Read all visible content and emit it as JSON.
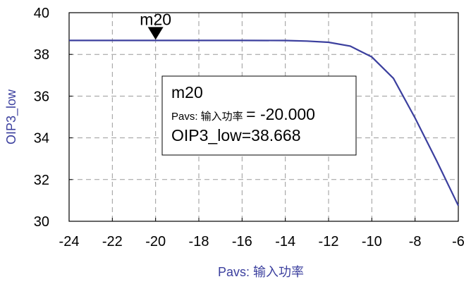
{
  "chart_data": {
    "type": "line",
    "xlabel": "Pavs: 输入功率",
    "ylabel": "OIP3_low",
    "xlim": [
      -24,
      -6
    ],
    "ylim": [
      30,
      40
    ],
    "x_ticks": [
      "-24",
      "-22",
      "-20",
      "-18",
      "-16",
      "-14",
      "-12",
      "-10",
      "-8",
      "-6"
    ],
    "y_ticks": [
      "30",
      "32",
      "34",
      "36",
      "38",
      "40"
    ],
    "grid": "dashed",
    "series": [
      {
        "x": [
          -24,
          -22,
          -20,
          -18,
          -16,
          -14,
          -13,
          -12,
          -11,
          -10,
          -9,
          -8,
          -7,
          -6
        ],
        "y": [
          38.67,
          38.67,
          38.668,
          38.668,
          38.668,
          38.665,
          38.64,
          38.58,
          38.4,
          37.88,
          36.85,
          34.95,
          32.9,
          30.75
        ]
      }
    ],
    "marker": {
      "name": "m20",
      "x": -20,
      "y": 38.668,
      "label_title": "m20",
      "label_line1_prefix": "Pavs: 输入功率",
      "label_line1_value": "= -20.000",
      "label_line2": "OIP3_low=38.668"
    },
    "colors": {
      "line": "#3b3f9e",
      "grid": "#9a9a9a",
      "axis_title": "#3b3f9e",
      "frame": "#000000"
    }
  }
}
